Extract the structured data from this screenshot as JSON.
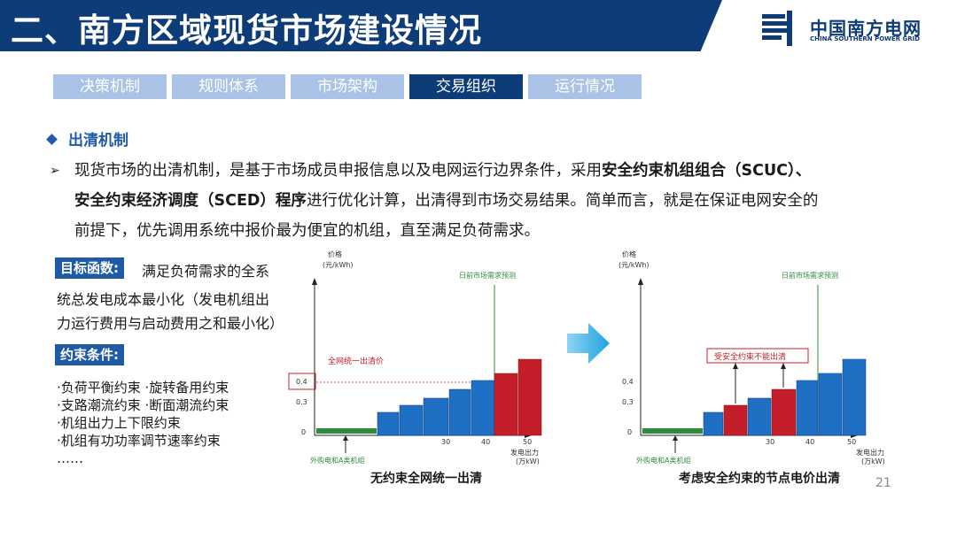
{
  "header": {
    "title": "二、南方区域现货市场建设情况",
    "logo_name": "中国南方电网",
    "logo_en": "CHINA SOUTHERN POWER GRID"
  },
  "tabs": [
    {
      "label": "决策机制",
      "active": false
    },
    {
      "label": "规则体系",
      "active": false
    },
    {
      "label": "市场架构",
      "active": false
    },
    {
      "label": "交易组织",
      "active": true
    },
    {
      "label": "运行情况",
      "active": false
    }
  ],
  "section": {
    "title": "出清机制",
    "para_1a": "现货市场的出清机制，是基于市场成员申报信息以及电网运行边界条件，采用",
    "para_1b": "安全约束机组组合（SCUC）、",
    "para_2a": "安全约束经济调度（SCED）程序",
    "para_2b": "进行优化计算，出清得到市场交易结果。简单而言，就是在保证电网安全的",
    "para_3": "前提下，优先调用系统中报价最为便宜的机组，直至满足负荷需求。"
  },
  "objective": {
    "label": "目标函数:",
    "line1": "满足负荷需求的全系",
    "line2": "统总发电成本最小化（发电机组出",
    "line3": "力运行费用与启动费用之和最小化）"
  },
  "constraints": {
    "label": "约束条件:",
    "items": [
      "·负荷平衡约束   ·旋转备用约束",
      "·支路潮流约束   ·断面潮流约束",
      "·机组出力上下限约束",
      "·机组有功功率调节速率约束",
      "……"
    ]
  },
  "charts": {
    "left": {
      "y_title_1": "价格",
      "y_title_2": "(元/kWh)",
      "demand_label": "日前市场需求预测",
      "price_label": "全网统一出清价",
      "y_tick_04": "0.4",
      "y_tick_03": "0.3",
      "y_tick_0": "0",
      "x_tick_30": "30",
      "x_tick_40": "40",
      "x_tick_50": "50",
      "x_title_1": "发电出力",
      "x_title_2": "(万kW)",
      "unit_label": "外购电和A类机组",
      "caption": "无约束全网统一出清"
    },
    "right": {
      "y_title_1": "价格",
      "y_title_2": "(元/kWh)",
      "demand_label": "日前市场需求预测",
      "constraint_label": "受安全约束不能出清",
      "y_tick_04": "0.4",
      "y_tick_03": "0.3",
      "y_tick_0": "0",
      "x_tick_30": "30",
      "x_tick_40": "40",
      "x_tick_50": "50",
      "x_title_1": "发电出力",
      "x_title_2": "(万kW)",
      "unit_label": "外购电和A类机组",
      "caption": "考虑安全约束的节点电价出清"
    }
  },
  "page_number": "21",
  "colors": {
    "brand": "#0d3c78",
    "tab_inactive": "#a9c2e6",
    "blue_bar": "#1f6fc4",
    "red_bar": "#c41e2a",
    "green": "#2e8b3d"
  }
}
